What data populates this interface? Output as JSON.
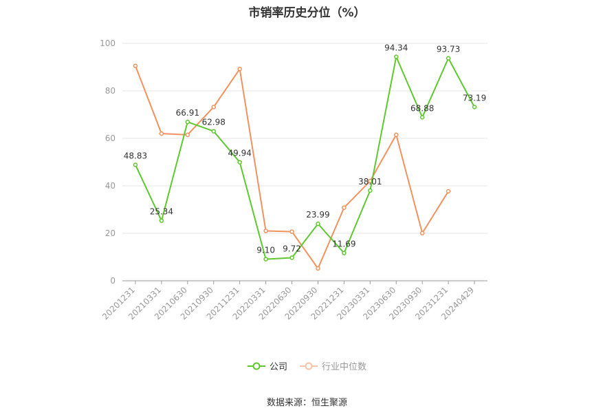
{
  "chart_data": {
    "type": "line",
    "title": "市销率历史分位（%）",
    "xlabel": "",
    "ylabel": "",
    "ylim": [
      0,
      100
    ],
    "yticks": [
      0,
      20,
      40,
      60,
      80,
      100
    ],
    "grid": true,
    "legend_position": "bottom",
    "categories": [
      "20201231",
      "20210331",
      "20210630",
      "20210930",
      "20211231",
      "20220331",
      "20220630",
      "20220930",
      "20221231",
      "20230331",
      "20230630",
      "20230930",
      "20231231",
      "20240429"
    ],
    "series": [
      {
        "name": "公司",
        "color": "#5ec82f",
        "values": [
          48.83,
          25.34,
          66.91,
          62.98,
          49.94,
          9.1,
          9.72,
          23.99,
          11.69,
          38.01,
          94.34,
          68.88,
          93.73,
          73.19
        ],
        "labels": [
          "48.83",
          "25.34",
          "66.91",
          "62.98",
          "49.94",
          "9.10",
          "9.72",
          "23.99",
          "11.69",
          "38.01",
          "94.34",
          "68.88",
          "93.73",
          "73.19"
        ]
      },
      {
        "name": "行业中位数",
        "color": "#f0925e",
        "values": [
          90.5,
          62.0,
          61.5,
          73.2,
          89.2,
          21.0,
          20.7,
          5.2,
          30.8,
          42.0,
          61.5,
          20.1,
          37.7,
          null
        ]
      }
    ]
  },
  "legend": {
    "company_label": "公司",
    "industry_label": "行业中位数"
  },
  "footer": {
    "source": "数据来源：恒生聚源"
  }
}
